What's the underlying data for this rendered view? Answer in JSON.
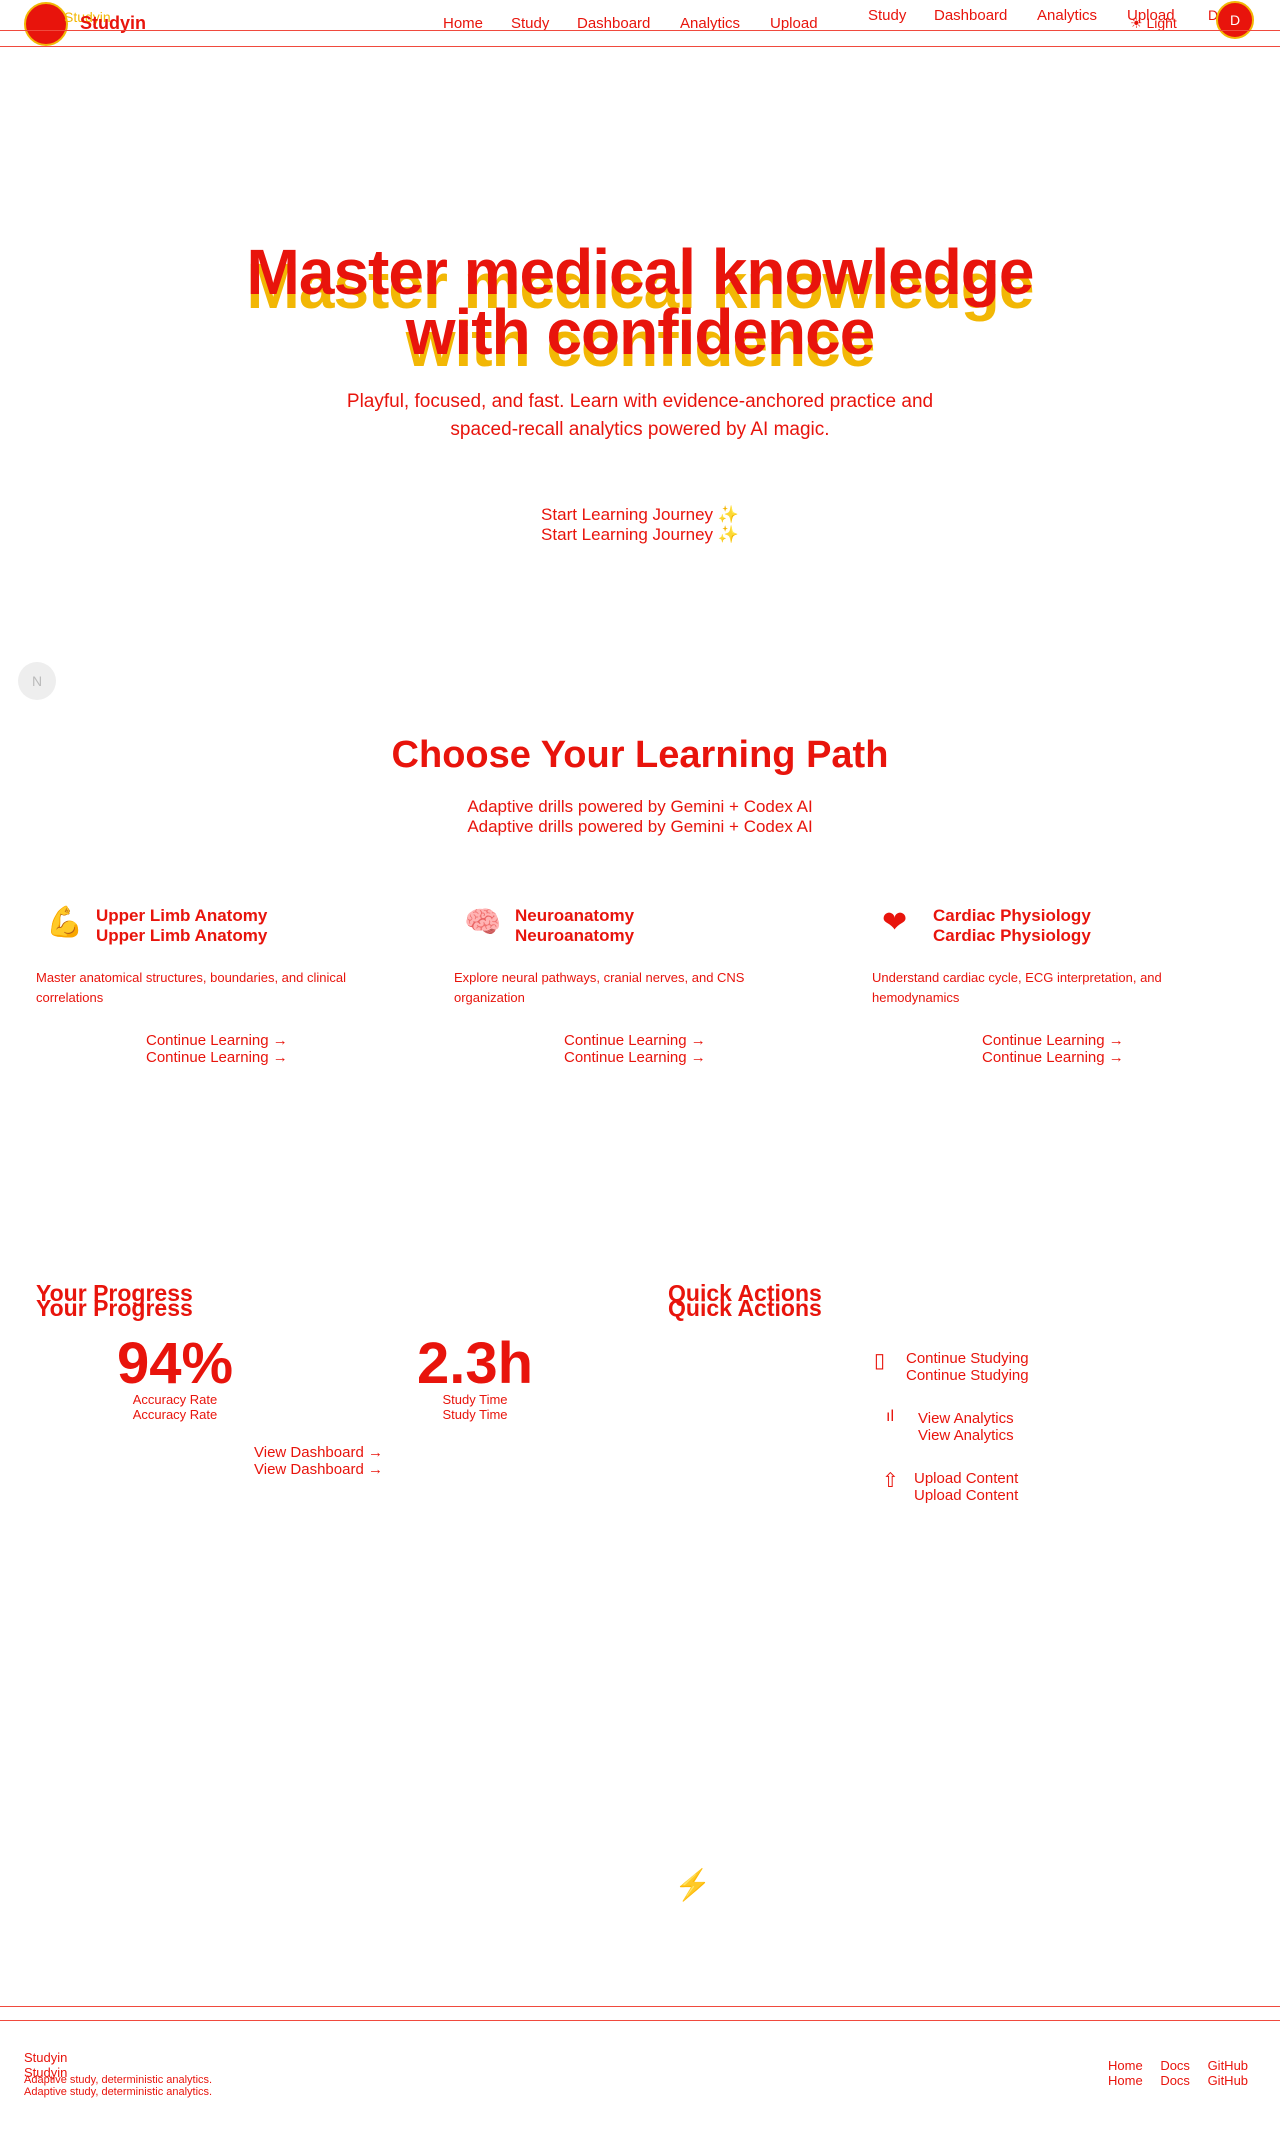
{
  "app": {
    "name": "Studyin"
  },
  "header": {
    "nav": [
      "Home",
      "Study",
      "Dashboard",
      "Analytics",
      "Upload"
    ],
    "nav_secondary": [
      "Study",
      "Dashboard",
      "Analytics",
      "Upload"
    ],
    "theme_label": "Light",
    "avatar_letter": "D"
  },
  "hero": {
    "title_line1": "Master medical knowledge",
    "title_line2": "with confidence",
    "subtitle_line1": "Playful, focused, and fast. Learn with evidence-anchored practice and",
    "subtitle_line2": "spaced-recall analytics powered by AI magic.",
    "cta": "Start Learning Journey ✨"
  },
  "side_badge": "N",
  "paths": {
    "title": "Choose Your Learning Path",
    "subtitle": "Adaptive drills powered by Gemini + Codex AI",
    "cards": [
      {
        "title": "Upper Limb Anatomy",
        "desc_line1": "Master anatomical structures, boundaries, and clinical",
        "desc_line2": "correlations",
        "link": "Continue Learning →",
        "icon": "muscle-icon"
      },
      {
        "title": "Neuroanatomy",
        "desc_line1": "Explore neural pathways, cranial nerves, and CNS",
        "desc_line2": "organization",
        "link": "Continue Learning →",
        "icon": "brain-icon"
      },
      {
        "title": "Cardiac Physiology",
        "desc_line1": "Understand cardiac cycle, ECG interpretation, and",
        "desc_line2": "hemodynamics",
        "link": "Continue Learning →",
        "icon": "heart-icon"
      }
    ]
  },
  "progress": {
    "title": "Your Progress",
    "accuracy_value": "94%",
    "accuracy_label": "Accuracy Rate",
    "time_value": "2.3h",
    "time_label": "Study Time",
    "link": "View Dashboard →"
  },
  "actions": {
    "title": "Quick Actions",
    "items": [
      {
        "label": "Continue Studying",
        "icon": "book-icon"
      },
      {
        "label": "View Analytics",
        "icon": "bar-chart-icon"
      },
      {
        "label": "Upload Content",
        "icon": "upload-icon"
      }
    ]
  },
  "footer": {
    "brand": "Studyin",
    "tagline": "Adaptive study, deterministic analytics.",
    "links": [
      "Home",
      "Docs",
      "GitHub"
    ]
  },
  "colors": {
    "primary": "#e8140c",
    "accent": "#f2b705"
  }
}
